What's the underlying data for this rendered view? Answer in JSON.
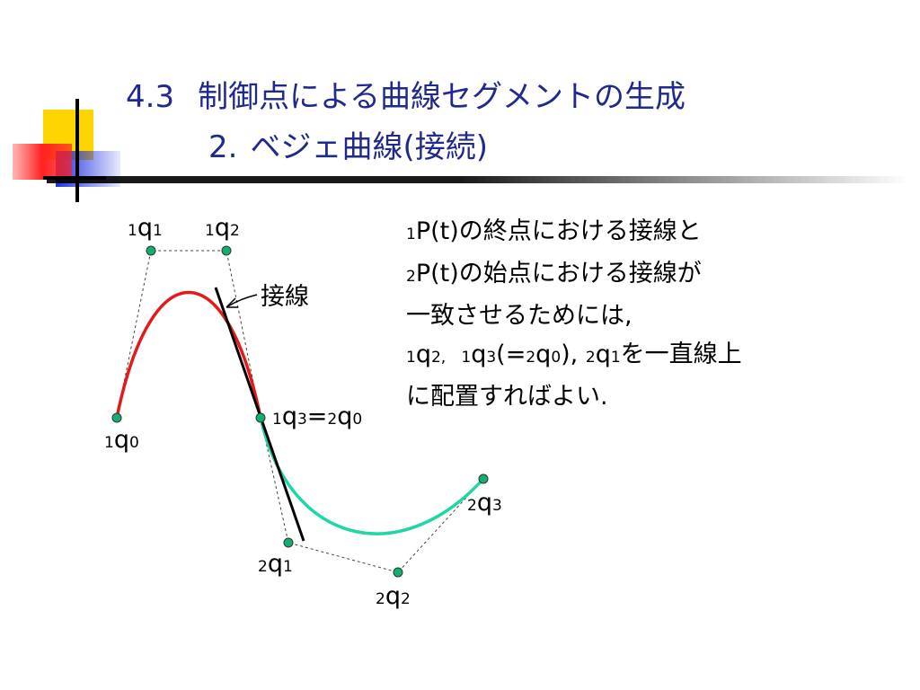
{
  "slide": {
    "title_line1_number": "4.3",
    "title_line1_text": "制御点による曲線セグメントの生成",
    "title_line2_number": "2.",
    "title_line2_text": "ベジェ曲線(接続)",
    "title_color": "#1f2a8c"
  },
  "diagram": {
    "tangent_label": "接線",
    "curve1_color": "#e31a1a",
    "curve2_color": "#20d6a6",
    "point_color": "#10b070",
    "labels": {
      "p1q0": {
        "pre": "1",
        "q": "q",
        "sub": "0"
      },
      "p1q1": {
        "pre": "1",
        "q": "q",
        "sub": "1"
      },
      "p1q2": {
        "pre": "1",
        "q": "q",
        "sub": "2"
      },
      "p1q3": {
        "pre": "1",
        "q": "q",
        "sub": "3",
        "eq": "=",
        "pre2": "2",
        "q2": "q",
        "sub2": "0"
      },
      "p2q1": {
        "pre": "2",
        "q": "q",
        "sub": "1"
      },
      "p2q2": {
        "pre": "2",
        "q": "q",
        "sub": "2"
      },
      "p2q3": {
        "pre": "2",
        "q": "q",
        "sub": "3"
      }
    }
  },
  "explanation": {
    "l1_pre": "1",
    "l1_text": "P(t)の終点における接線と",
    "l2_pre": "2",
    "l2_text": "P(t)の始点における接線が",
    "l3_text": "一致させるためには,",
    "l4_a_pre": "1",
    "l4_a_q": "q",
    "l4_a_sub": "2",
    "l4_sep1": ",",
    "l4_b_pre": "1",
    "l4_b_q": "q",
    "l4_b_sub": "3",
    "l4_open": "(=",
    "l4_c_pre": "2",
    "l4_c_q": "q",
    "l4_c_sub": "0",
    "l4_close": "),",
    "l4_d_pre": "2",
    "l4_d_q": "q",
    "l4_d_sub": "1",
    "l4_tail": "を一直線上",
    "l5_text": "に配置すればよい."
  }
}
